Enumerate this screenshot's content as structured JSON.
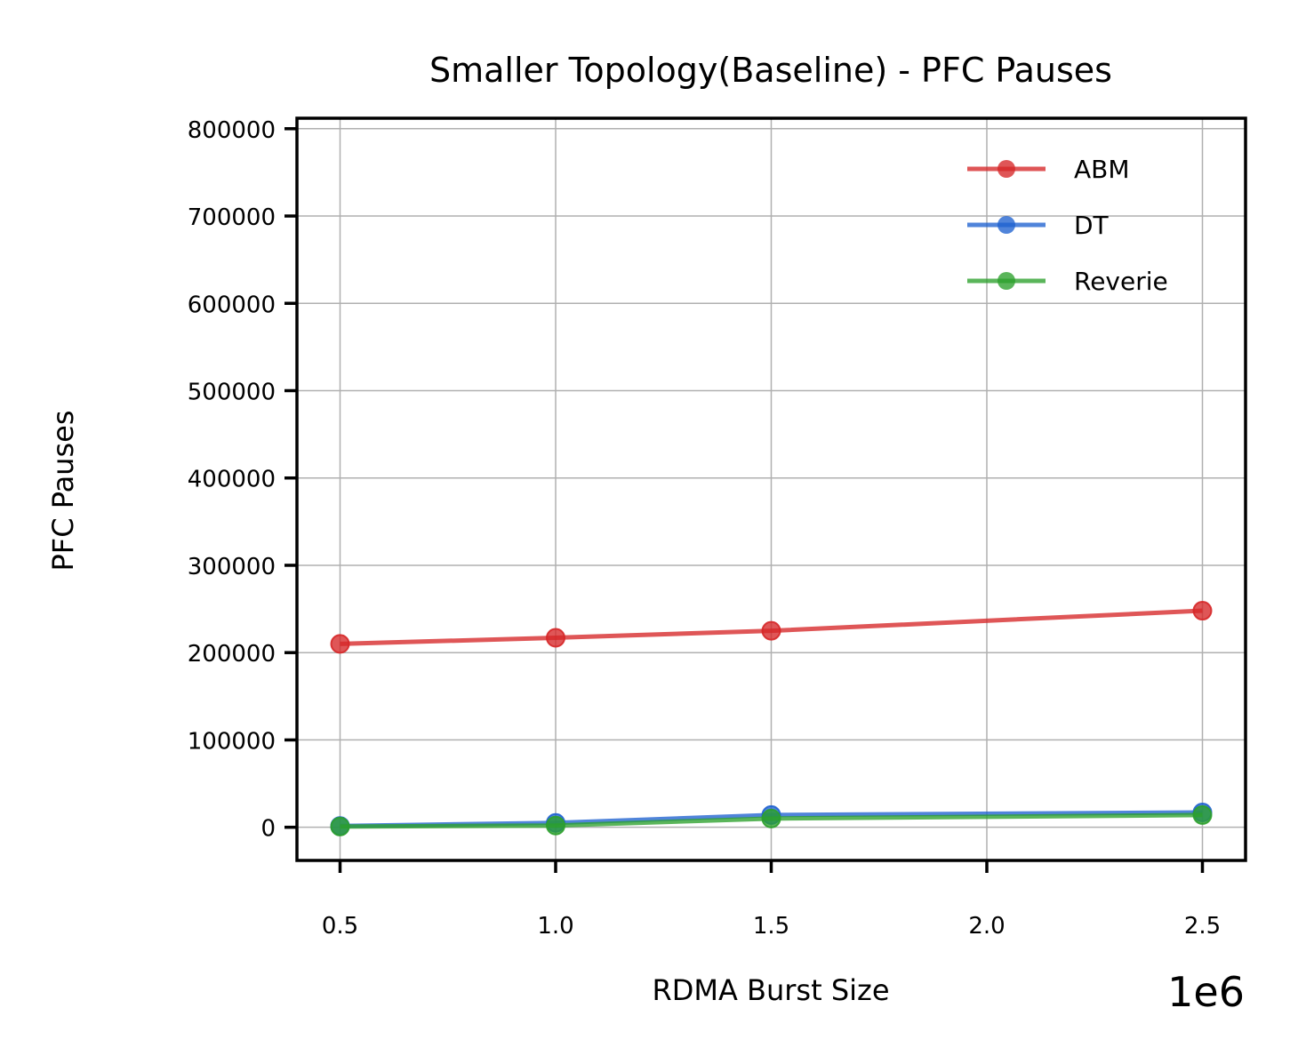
{
  "chart_data": {
    "type": "line",
    "title": "Smaller Topology(Baseline) - PFC Pauses",
    "xlabel": "RDMA Burst Size",
    "ylabel": "PFC Pauses",
    "x_offset_label": "1e6",
    "x": [
      500000,
      1000000,
      1500000,
      2500000
    ],
    "xlim": [
      400000,
      2600000
    ],
    "ylim": [
      -38000,
      812000
    ],
    "xticks": [
      500000,
      1000000,
      1500000,
      2000000,
      2500000
    ],
    "xtick_labels": [
      "0.5",
      "1.0",
      "1.5",
      "2.0",
      "2.5"
    ],
    "yticks": [
      0,
      100000,
      200000,
      300000,
      400000,
      500000,
      600000,
      700000,
      800000
    ],
    "ytick_labels": [
      "0",
      "100000",
      "200000",
      "300000",
      "400000",
      "500000",
      "600000",
      "700000",
      "800000"
    ],
    "grid": true,
    "legend_position": "top-right",
    "series": [
      {
        "name": "ABM",
        "color": "#d62728",
        "values": [
          210000,
          217000,
          225000,
          248000
        ]
      },
      {
        "name": "DT",
        "color": "#1f62d0",
        "values": [
          1500,
          5000,
          14000,
          17000
        ]
      },
      {
        "name": "Reverie",
        "color": "#2ca02c",
        "values": [
          800,
          2000,
          10000,
          14000
        ]
      }
    ]
  }
}
